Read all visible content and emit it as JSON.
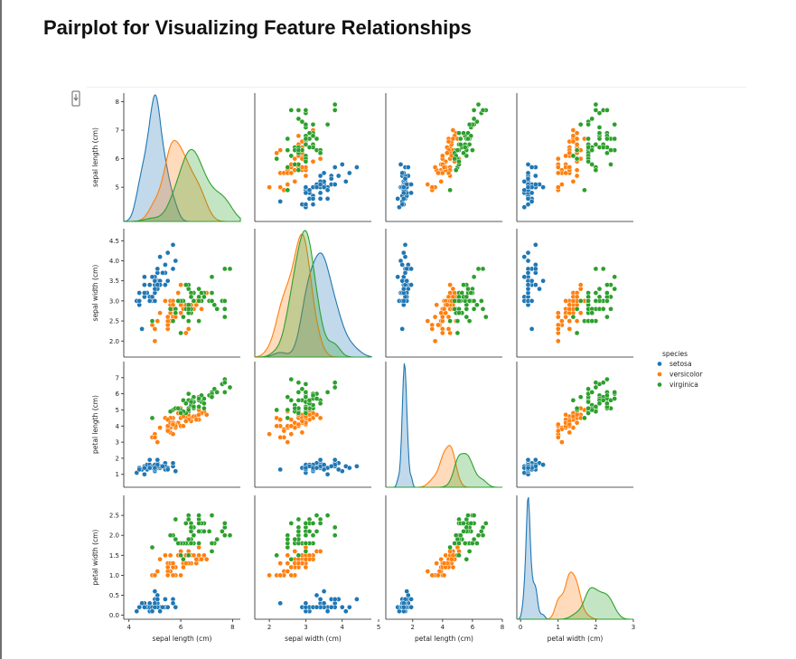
{
  "page": {
    "title": "Pairplot for Visualizing Feature Relationships",
    "cell_output_icon": "output-expand-icon"
  },
  "chart_data": {
    "type": "scatter",
    "subtype": "pairplot",
    "variables": [
      "sepal length (cm)",
      "sepal width (cm)",
      "petal length (cm)",
      "petal width (cm)"
    ],
    "diagonal": "kde",
    "hue": "species",
    "legend": {
      "title": "species",
      "placement": "right",
      "entries": [
        "setosa",
        "versicolor",
        "virginica"
      ]
    },
    "colors": {
      "setosa": "#1f77b4",
      "versicolor": "#ff7f0e",
      "virginica": "#2ca02c"
    },
    "axis_ranges": {
      "sepal length (cm)": [
        3.8,
        8.3
      ],
      "sepal width (cm)": [
        1.6,
        4.8
      ],
      "petal length (cm)": [
        0.2,
        8.0
      ],
      "petal width (cm)": [
        -0.1,
        3.0
      ]
    },
    "tick_labels": {
      "row": {
        "sepal length (cm)": [
          "5",
          "6",
          "7",
          "8"
        ],
        "sepal width (cm)": [
          "2.0",
          "2.5",
          "3.0",
          "3.5",
          "4.0",
          "4.5"
        ],
        "petal length (cm)": [
          "1",
          "2",
          "3",
          "4",
          "5",
          "6",
          "7"
        ],
        "petal width (cm)": [
          "0.0",
          "0.5",
          "1.0",
          "1.5",
          "2.0",
          "2.5"
        ]
      },
      "col": {
        "sepal length (cm)": [
          "4",
          "6",
          "8"
        ],
        "sepal width (cm)": [
          "2",
          "3",
          "4",
          "5"
        ],
        "petal length (cm)": [
          "2",
          "4",
          "6",
          "8"
        ],
        "petal width (cm)": [
          "0",
          "1",
          "2",
          "3"
        ]
      }
    },
    "grid": false,
    "series": [
      {
        "name": "setosa",
        "points": [
          [
            5.1,
            3.5,
            1.4,
            0.2
          ],
          [
            4.9,
            3.0,
            1.4,
            0.2
          ],
          [
            4.7,
            3.2,
            1.3,
            0.2
          ],
          [
            4.6,
            3.1,
            1.5,
            0.2
          ],
          [
            5.0,
            3.6,
            1.4,
            0.2
          ],
          [
            5.4,
            3.9,
            1.7,
            0.4
          ],
          [
            4.6,
            3.4,
            1.4,
            0.3
          ],
          [
            5.0,
            3.4,
            1.5,
            0.2
          ],
          [
            4.4,
            2.9,
            1.4,
            0.2
          ],
          [
            4.9,
            3.1,
            1.5,
            0.1
          ],
          [
            5.4,
            3.7,
            1.5,
            0.2
          ],
          [
            4.8,
            3.4,
            1.6,
            0.2
          ],
          [
            4.8,
            3.0,
            1.4,
            0.1
          ],
          [
            4.3,
            3.0,
            1.1,
            0.1
          ],
          [
            5.8,
            4.0,
            1.2,
            0.2
          ],
          [
            5.7,
            4.4,
            1.5,
            0.4
          ],
          [
            5.4,
            3.9,
            1.3,
            0.4
          ],
          [
            5.1,
            3.5,
            1.4,
            0.3
          ],
          [
            5.7,
            3.8,
            1.7,
            0.3
          ],
          [
            5.1,
            3.8,
            1.5,
            0.3
          ],
          [
            5.4,
            3.4,
            1.7,
            0.2
          ],
          [
            5.1,
            3.7,
            1.5,
            0.4
          ],
          [
            4.6,
            3.6,
            1.0,
            0.2
          ],
          [
            5.1,
            3.3,
            1.7,
            0.5
          ],
          [
            4.8,
            3.4,
            1.9,
            0.2
          ],
          [
            5.0,
            3.0,
            1.6,
            0.2
          ],
          [
            5.0,
            3.4,
            1.6,
            0.4
          ],
          [
            5.2,
            3.5,
            1.5,
            0.2
          ],
          [
            5.2,
            3.4,
            1.4,
            0.2
          ],
          [
            4.7,
            3.2,
            1.6,
            0.2
          ],
          [
            4.8,
            3.1,
            1.6,
            0.2
          ],
          [
            5.4,
            3.4,
            1.5,
            0.4
          ],
          [
            5.2,
            4.1,
            1.5,
            0.1
          ],
          [
            5.5,
            4.2,
            1.4,
            0.2
          ],
          [
            4.9,
            3.1,
            1.5,
            0.2
          ],
          [
            5.0,
            3.2,
            1.2,
            0.2
          ],
          [
            5.5,
            3.5,
            1.3,
            0.2
          ],
          [
            4.9,
            3.6,
            1.4,
            0.1
          ],
          [
            4.4,
            3.0,
            1.3,
            0.2
          ],
          [
            5.1,
            3.4,
            1.5,
            0.2
          ],
          [
            5.0,
            3.5,
            1.3,
            0.3
          ],
          [
            4.5,
            2.3,
            1.3,
            0.3
          ],
          [
            4.4,
            3.2,
            1.3,
            0.2
          ],
          [
            5.0,
            3.5,
            1.6,
            0.6
          ],
          [
            5.1,
            3.8,
            1.9,
            0.4
          ],
          [
            4.8,
            3.0,
            1.4,
            0.3
          ],
          [
            5.1,
            3.8,
            1.6,
            0.2
          ],
          [
            4.6,
            3.2,
            1.4,
            0.2
          ],
          [
            5.3,
            3.7,
            1.5,
            0.2
          ],
          [
            5.0,
            3.3,
            1.4,
            0.2
          ]
        ]
      },
      {
        "name": "versicolor",
        "points": [
          [
            7.0,
            3.2,
            4.7,
            1.4
          ],
          [
            6.4,
            3.2,
            4.5,
            1.5
          ],
          [
            6.9,
            3.1,
            4.9,
            1.5
          ],
          [
            5.5,
            2.3,
            4.0,
            1.3
          ],
          [
            6.5,
            2.8,
            4.6,
            1.5
          ],
          [
            5.7,
            2.8,
            4.5,
            1.3
          ],
          [
            6.3,
            3.3,
            4.7,
            1.6
          ],
          [
            4.9,
            2.4,
            3.3,
            1.0
          ],
          [
            6.6,
            2.9,
            4.6,
            1.3
          ],
          [
            5.2,
            2.7,
            3.9,
            1.4
          ],
          [
            5.0,
            2.0,
            3.5,
            1.0
          ],
          [
            5.9,
            3.0,
            4.2,
            1.5
          ],
          [
            6.0,
            2.2,
            4.0,
            1.0
          ],
          [
            6.1,
            2.9,
            4.7,
            1.4
          ],
          [
            5.6,
            2.9,
            3.6,
            1.3
          ],
          [
            6.7,
            3.1,
            4.4,
            1.4
          ],
          [
            5.6,
            3.0,
            4.5,
            1.5
          ],
          [
            5.8,
            2.7,
            4.1,
            1.0
          ],
          [
            6.2,
            2.2,
            4.5,
            1.5
          ],
          [
            5.6,
            2.5,
            3.9,
            1.1
          ],
          [
            5.9,
            3.2,
            4.8,
            1.8
          ],
          [
            6.1,
            2.8,
            4.0,
            1.3
          ],
          [
            6.3,
            2.5,
            4.9,
            1.5
          ],
          [
            6.1,
            2.8,
            4.7,
            1.2
          ],
          [
            6.4,
            2.9,
            4.3,
            1.3
          ],
          [
            6.6,
            3.0,
            4.4,
            1.4
          ],
          [
            6.8,
            2.8,
            4.8,
            1.4
          ],
          [
            6.7,
            3.0,
            5.0,
            1.7
          ],
          [
            6.0,
            2.9,
            4.5,
            1.5
          ],
          [
            5.7,
            2.6,
            3.5,
            1.0
          ],
          [
            5.5,
            2.4,
            3.8,
            1.1
          ],
          [
            5.5,
            2.4,
            3.7,
            1.0
          ],
          [
            5.8,
            2.7,
            3.9,
            1.2
          ],
          [
            6.0,
            2.7,
            5.1,
            1.6
          ],
          [
            5.4,
            3.0,
            4.5,
            1.5
          ],
          [
            6.0,
            3.4,
            4.5,
            1.6
          ],
          [
            6.7,
            3.1,
            4.7,
            1.5
          ],
          [
            6.3,
            2.3,
            4.4,
            1.3
          ],
          [
            5.6,
            3.0,
            4.1,
            1.3
          ],
          [
            5.5,
            2.5,
            4.0,
            1.3
          ],
          [
            5.5,
            2.6,
            4.4,
            1.2
          ],
          [
            6.1,
            3.0,
            4.6,
            1.4
          ],
          [
            5.8,
            2.6,
            4.0,
            1.2
          ],
          [
            5.0,
            2.3,
            3.3,
            1.0
          ],
          [
            5.6,
            2.7,
            4.2,
            1.3
          ],
          [
            5.7,
            3.0,
            4.2,
            1.2
          ],
          [
            5.7,
            2.9,
            4.2,
            1.3
          ],
          [
            6.2,
            2.9,
            4.3,
            1.3
          ],
          [
            5.1,
            2.5,
            3.0,
            1.1
          ],
          [
            5.7,
            2.8,
            4.1,
            1.3
          ]
        ]
      },
      {
        "name": "virginica",
        "points": [
          [
            6.3,
            3.3,
            6.0,
            2.5
          ],
          [
            5.8,
            2.7,
            5.1,
            1.9
          ],
          [
            7.1,
            3.0,
            5.9,
            2.1
          ],
          [
            6.3,
            2.9,
            5.6,
            1.8
          ],
          [
            6.5,
            3.0,
            5.8,
            2.2
          ],
          [
            7.6,
            3.0,
            6.6,
            2.1
          ],
          [
            4.9,
            2.5,
            4.5,
            1.7
          ],
          [
            7.3,
            2.9,
            6.3,
            1.8
          ],
          [
            6.7,
            2.5,
            5.8,
            1.8
          ],
          [
            7.2,
            3.6,
            6.1,
            2.5
          ],
          [
            6.5,
            3.2,
            5.1,
            2.0
          ],
          [
            6.4,
            2.7,
            5.3,
            1.9
          ],
          [
            6.8,
            3.0,
            5.5,
            2.1
          ],
          [
            5.7,
            2.5,
            5.0,
            2.0
          ],
          [
            5.8,
            2.8,
            5.1,
            2.4
          ],
          [
            6.4,
            3.2,
            5.3,
            2.3
          ],
          [
            6.5,
            3.0,
            5.5,
            1.8
          ],
          [
            7.7,
            3.8,
            6.7,
            2.2
          ],
          [
            7.7,
            2.6,
            6.9,
            2.3
          ],
          [
            6.0,
            2.2,
            5.0,
            1.5
          ],
          [
            6.9,
            3.2,
            5.7,
            2.3
          ],
          [
            5.6,
            2.8,
            4.9,
            2.0
          ],
          [
            7.7,
            2.8,
            6.7,
            2.0
          ],
          [
            6.3,
            2.7,
            4.9,
            1.8
          ],
          [
            6.7,
            3.3,
            5.7,
            2.1
          ],
          [
            7.2,
            3.2,
            6.0,
            1.8
          ],
          [
            6.2,
            2.8,
            4.8,
            1.8
          ],
          [
            6.1,
            3.0,
            4.9,
            1.8
          ],
          [
            6.4,
            2.8,
            5.6,
            2.1
          ],
          [
            7.2,
            3.0,
            5.8,
            1.6
          ],
          [
            7.4,
            2.8,
            6.1,
            1.9
          ],
          [
            7.9,
            3.8,
            6.4,
            2.0
          ],
          [
            6.4,
            2.8,
            5.6,
            2.2
          ],
          [
            6.3,
            2.8,
            5.1,
            1.5
          ],
          [
            6.1,
            2.6,
            5.6,
            1.4
          ],
          [
            7.7,
            3.0,
            6.1,
            2.3
          ],
          [
            6.3,
            3.4,
            5.6,
            2.4
          ],
          [
            6.4,
            3.1,
            5.5,
            1.8
          ],
          [
            6.0,
            3.0,
            4.8,
            1.8
          ],
          [
            6.9,
            3.1,
            5.4,
            2.1
          ],
          [
            6.7,
            3.1,
            5.6,
            2.4
          ],
          [
            6.9,
            3.1,
            5.1,
            2.3
          ],
          [
            5.8,
            2.7,
            5.1,
            1.9
          ],
          [
            6.8,
            3.2,
            5.9,
            2.3
          ],
          [
            6.7,
            3.3,
            5.7,
            2.5
          ],
          [
            6.7,
            3.0,
            5.2,
            2.3
          ],
          [
            6.3,
            2.5,
            5.0,
            1.9
          ],
          [
            6.5,
            3.0,
            5.2,
            2.0
          ],
          [
            6.2,
            3.4,
            5.4,
            2.3
          ],
          [
            5.9,
            3.0,
            5.1,
            1.8
          ]
        ]
      }
    ]
  }
}
